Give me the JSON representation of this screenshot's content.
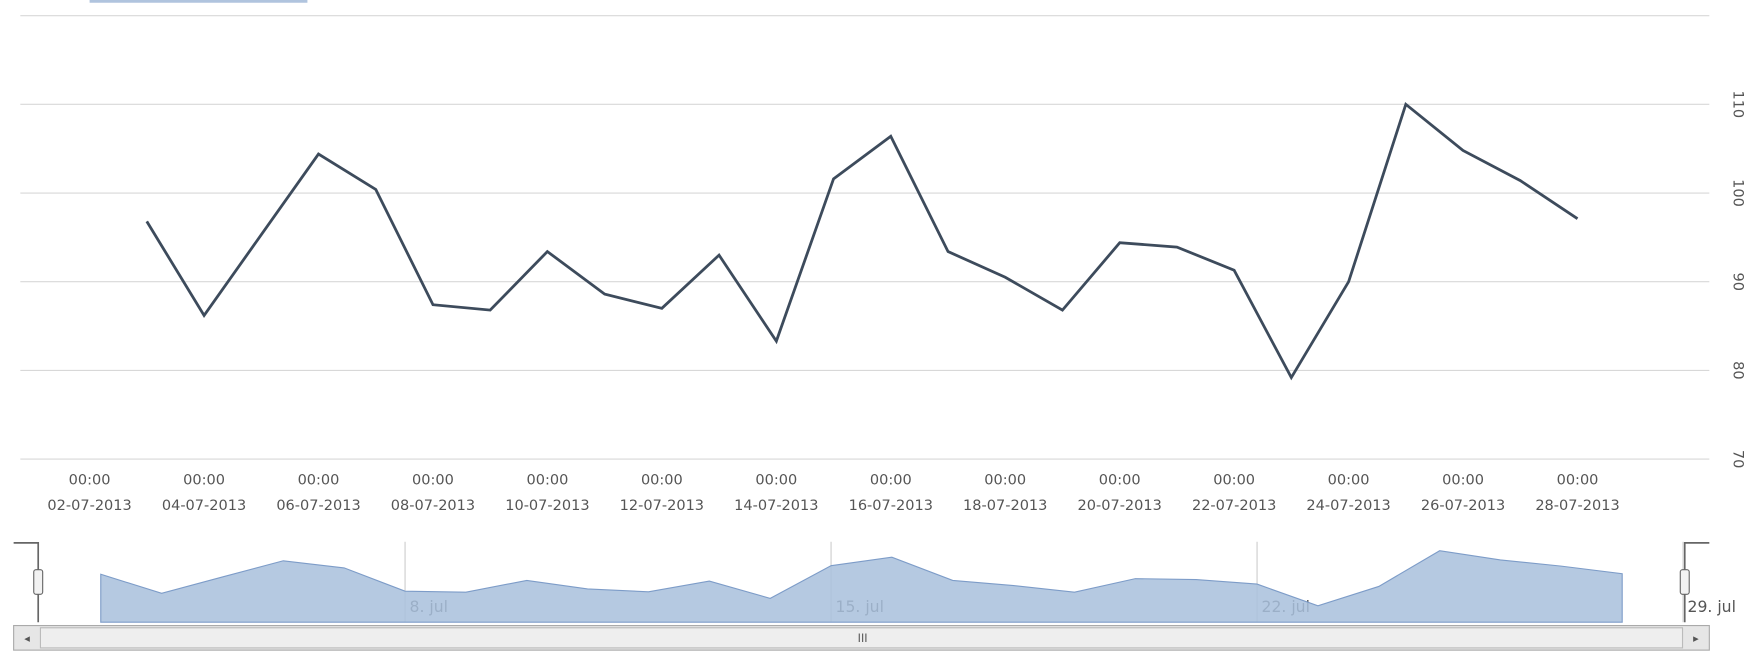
{
  "chart_data": {
    "type": "line",
    "x": [
      "03-07-2013",
      "04-07-2013",
      "05-07-2013",
      "06-07-2013",
      "07-07-2013",
      "08-07-2013",
      "09-07-2013",
      "10-07-2013",
      "11-07-2013",
      "12-07-2013",
      "13-07-2013",
      "14-07-2013",
      "15-07-2013",
      "16-07-2013",
      "17-07-2013",
      "18-07-2013",
      "19-07-2013",
      "20-07-2013",
      "21-07-2013",
      "22-07-2013",
      "23-07-2013",
      "24-07-2013",
      "25-07-2013",
      "26-07-2013",
      "27-07-2013",
      "28-07-2013"
    ],
    "values": [
      96.8,
      86.2,
      95.3,
      104.4,
      100.4,
      87.4,
      86.8,
      93.4,
      88.6,
      87.0,
      93.0,
      83.3,
      101.6,
      106.4,
      93.4,
      90.5,
      86.8,
      94.4,
      93.9,
      91.3,
      79.2,
      90.0,
      110.0,
      104.8,
      101.4,
      97.1
    ],
    "color": "#3d4b5c",
    "ylim": [
      70,
      120
    ],
    "yticks": [
      70,
      80,
      90,
      100,
      110
    ],
    "grid": true,
    "xticks": [
      "02-07-2013",
      "04-07-2013",
      "06-07-2013",
      "08-07-2013",
      "10-07-2013",
      "12-07-2013",
      "14-07-2013",
      "16-07-2013",
      "18-07-2013",
      "20-07-2013",
      "22-07-2013",
      "24-07-2013",
      "26-07-2013",
      "28-07-2013"
    ],
    "xtick_time": "00:00",
    "navigator": {
      "color": "#a8bfdc",
      "xticks": [
        {
          "value": "08-07-2013",
          "label": "8. jul"
        },
        {
          "value": "15-07-2013",
          "label": "15. jul"
        },
        {
          "value": "22-07-2013",
          "label": "22. jul"
        },
        {
          "value": "29-07-2013",
          "label": "29. jul"
        }
      ]
    }
  }
}
